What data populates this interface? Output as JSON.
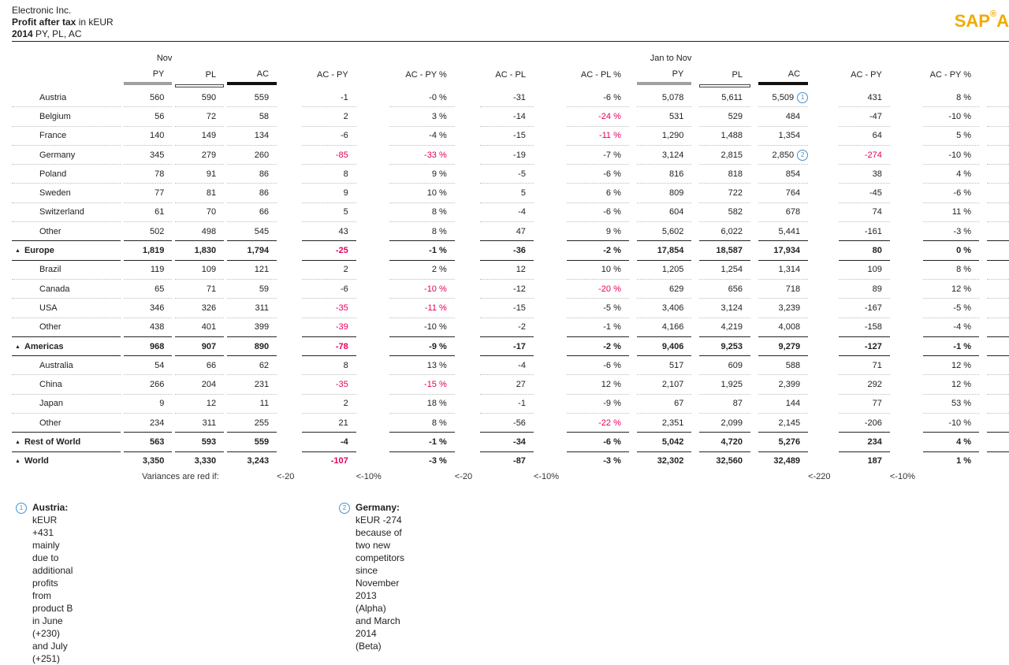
{
  "header": {
    "company": "Electronic Inc.",
    "measure_bold": "Profit after tax",
    "measure_unit": " in kEUR",
    "year": "2014",
    "scenarios": " PY, PL, AC"
  },
  "logo": {
    "text": "SAP",
    "mark": "®",
    "tail": "A"
  },
  "periods": {
    "month": "Nov",
    "ytd": "Jan to Nov"
  },
  "columns": [
    "PY",
    "PL",
    "AC",
    "AC - PY",
    "AC - PY %",
    "AC - PL",
    "AC - PL %",
    "PY",
    "PL",
    "AC",
    "AC - PY",
    "AC - PY %"
  ],
  "colors": {
    "negative_variance": "#e6005c",
    "note_ref": "#4a90c8",
    "logo": "#f0ab00"
  },
  "rows": [
    {
      "type": "data",
      "label": "Austria",
      "v": [
        "560",
        "590",
        "559",
        "-1",
        "-0 %",
        "-31",
        "-6 %",
        "5,078",
        "5,611",
        "5,509",
        "431",
        "8 %"
      ],
      "red": [],
      "note": "1"
    },
    {
      "type": "data",
      "label": "Belgium",
      "v": [
        "56",
        "72",
        "58",
        "2",
        "3 %",
        "-14",
        "-24 %",
        "531",
        "529",
        "484",
        "-47",
        "-10 %"
      ],
      "red": [
        6
      ]
    },
    {
      "type": "data",
      "label": "France",
      "v": [
        "140",
        "149",
        "134",
        "-6",
        "-4 %",
        "-15",
        "-11 %",
        "1,290",
        "1,488",
        "1,354",
        "64",
        "5 %"
      ],
      "red": [
        6
      ]
    },
    {
      "type": "data",
      "label": "Germany",
      "v": [
        "345",
        "279",
        "260",
        "-85",
        "-33 %",
        "-19",
        "-7 %",
        "3,124",
        "2,815",
        "2,850",
        "-274",
        "-10 %"
      ],
      "red": [
        3,
        4,
        10
      ],
      "note": "2"
    },
    {
      "type": "data",
      "label": "Poland",
      "v": [
        "78",
        "91",
        "86",
        "8",
        "9 %",
        "-5",
        "-6 %",
        "816",
        "818",
        "854",
        "38",
        "4 %"
      ],
      "red": []
    },
    {
      "type": "data",
      "label": "Sweden",
      "v": [
        "77",
        "81",
        "86",
        "9",
        "10 %",
        "5",
        "6 %",
        "809",
        "722",
        "764",
        "-45",
        "-6 %"
      ],
      "red": []
    },
    {
      "type": "data",
      "label": "Switzerland",
      "v": [
        "61",
        "70",
        "66",
        "5",
        "8 %",
        "-4",
        "-6 %",
        "604",
        "582",
        "678",
        "74",
        "11 %"
      ],
      "red": []
    },
    {
      "type": "data",
      "label": "Other",
      "v": [
        "502",
        "498",
        "545",
        "43",
        "8 %",
        "47",
        "9 %",
        "5,602",
        "6,022",
        "5,441",
        "-161",
        "-3 %"
      ],
      "red": [],
      "last": true
    },
    {
      "type": "total",
      "label": "Europe",
      "v": [
        "1,819",
        "1,830",
        "1,794",
        "-25",
        "-1 %",
        "-36",
        "-2 %",
        "17,854",
        "18,587",
        "17,934",
        "80",
        "0 %"
      ],
      "red": [
        3
      ]
    },
    {
      "type": "data",
      "label": "Brazil",
      "v": [
        "119",
        "109",
        "121",
        "2",
        "2 %",
        "12",
        "10 %",
        "1,205",
        "1,254",
        "1,314",
        "109",
        "8 %"
      ],
      "red": []
    },
    {
      "type": "data",
      "label": "Canada",
      "v": [
        "65",
        "71",
        "59",
        "-6",
        "-10 %",
        "-12",
        "-20 %",
        "629",
        "656",
        "718",
        "89",
        "12 %"
      ],
      "red": [
        4,
        6
      ]
    },
    {
      "type": "data",
      "label": "USA",
      "v": [
        "346",
        "326",
        "311",
        "-35",
        "-11 %",
        "-15",
        "-5 %",
        "3,406",
        "3,124",
        "3,239",
        "-167",
        "-5 %"
      ],
      "red": [
        3,
        4
      ]
    },
    {
      "type": "data",
      "label": "Other",
      "v": [
        "438",
        "401",
        "399",
        "-39",
        "-10 %",
        "-2",
        "-1 %",
        "4,166",
        "4,219",
        "4,008",
        "-158",
        "-4 %"
      ],
      "red": [
        3
      ],
      "last": true
    },
    {
      "type": "total",
      "label": "Americas",
      "v": [
        "968",
        "907",
        "890",
        "-78",
        "-9 %",
        "-17",
        "-2 %",
        "9,406",
        "9,253",
        "9,279",
        "-127",
        "-1 %"
      ],
      "red": [
        3
      ]
    },
    {
      "type": "data",
      "label": "Australia",
      "v": [
        "54",
        "66",
        "62",
        "8",
        "13 %",
        "-4",
        "-6 %",
        "517",
        "609",
        "588",
        "71",
        "12 %"
      ],
      "red": []
    },
    {
      "type": "data",
      "label": "China",
      "v": [
        "266",
        "204",
        "231",
        "-35",
        "-15 %",
        "27",
        "12 %",
        "2,107",
        "1,925",
        "2,399",
        "292",
        "12 %"
      ],
      "red": [
        3,
        4
      ]
    },
    {
      "type": "data",
      "label": "Japan",
      "v": [
        "9",
        "12",
        "11",
        "2",
        "18 %",
        "-1",
        "-9 %",
        "67",
        "87",
        "144",
        "77",
        "53 %"
      ],
      "red": []
    },
    {
      "type": "data",
      "label": "Other",
      "v": [
        "234",
        "311",
        "255",
        "21",
        "8 %",
        "-56",
        "-22 %",
        "2,351",
        "2,099",
        "2,145",
        "-206",
        "-10 %"
      ],
      "red": [
        6
      ],
      "last": true
    },
    {
      "type": "total",
      "label": "Rest of World",
      "v": [
        "563",
        "593",
        "559",
        "-4",
        "-1 %",
        "-34",
        "-6 %",
        "5,042",
        "4,720",
        "5,276",
        "234",
        "4 %"
      ],
      "red": []
    },
    {
      "type": "world",
      "label": "World",
      "v": [
        "3,350",
        "3,330",
        "3,243",
        "-107",
        "-3 %",
        "-87",
        "-3 %",
        "32,302",
        "32,560",
        "32,489",
        "187",
        "1 %"
      ],
      "red": [
        3
      ]
    }
  ],
  "variance_rule": {
    "label": "Variances are red if:",
    "v": [
      "",
      "",
      "",
      "<-20",
      "<-10%",
      "<-20",
      "<-10%",
      "",
      "",
      "",
      "<-220",
      "<-10%"
    ]
  },
  "footnotes": [
    {
      "num": "1",
      "bold": "Austria:",
      "text": " kEUR +431 mainly due to additional profits from product B",
      "text2": "in June (+230) and July (+251)"
    },
    {
      "num": "2",
      "bold": "Germany:",
      "text": " kEUR -274 because of two new competitors since",
      "text2": "November 2013 (Alpha) and March 2014 (Beta)"
    }
  ]
}
